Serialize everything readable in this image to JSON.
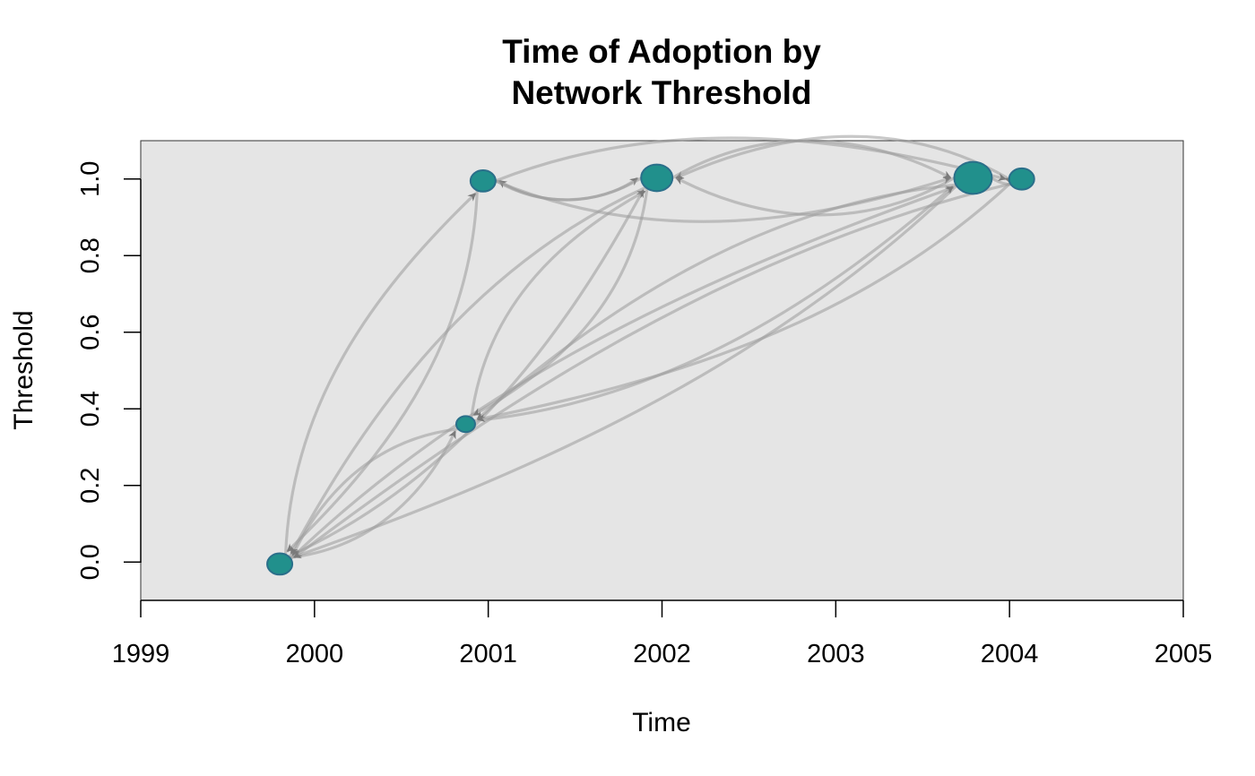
{
  "chart_data": {
    "type": "scatter",
    "title": [
      "Time of Adoption by",
      "Network Threshold"
    ],
    "xlabel": "Time",
    "ylabel": "Threshold",
    "xlim": [
      1999,
      2005
    ],
    "ylim": [
      -0.1,
      1.1
    ],
    "x_ticks": [
      "1999",
      "2000",
      "2001",
      "2002",
      "2003",
      "2004",
      "2005"
    ],
    "y_ticks": [
      "0.0",
      "0.2",
      "0.4",
      "0.6",
      "0.8",
      "1.0"
    ],
    "background": "#e5e5e5",
    "node_color": "#21908c",
    "node_border": "#2a6f8a",
    "edge_color": "#9a9a9a",
    "grid": false,
    "nodes": [
      {
        "id": "n1",
        "x": 1999.8,
        "y": -0.005,
        "size": 2
      },
      {
        "id": "n2",
        "x": 2000.87,
        "y": 0.36,
        "size": 1
      },
      {
        "id": "n3",
        "x": 2000.97,
        "y": 0.995,
        "size": 2
      },
      {
        "id": "n4",
        "x": 2001.97,
        "y": 1.003,
        "size": 3
      },
      {
        "id": "n5",
        "x": 2003.79,
        "y": 1.003,
        "size": 4
      },
      {
        "id": "n6",
        "x": 2004.07,
        "y": 1.0,
        "size": 2
      }
    ],
    "edges": [
      {
        "from": "n1",
        "to": "n2"
      },
      {
        "from": "n1",
        "to": "n3"
      },
      {
        "from": "n1",
        "to": "n4"
      },
      {
        "from": "n1",
        "to": "n5"
      },
      {
        "from": "n2",
        "to": "n1"
      },
      {
        "from": "n3",
        "to": "n1"
      },
      {
        "from": "n4",
        "to": "n1"
      },
      {
        "from": "n5",
        "to": "n1"
      },
      {
        "from": "n6",
        "to": "n1"
      },
      {
        "from": "n2",
        "to": "n4"
      },
      {
        "from": "n2",
        "to": "n5"
      },
      {
        "from": "n4",
        "to": "n2"
      },
      {
        "from": "n5",
        "to": "n2"
      },
      {
        "from": "n6",
        "to": "n2"
      },
      {
        "from": "n3",
        "to": "n4"
      },
      {
        "from": "n4",
        "to": "n3"
      },
      {
        "from": "n3",
        "to": "n5"
      },
      {
        "from": "n5",
        "to": "n4"
      },
      {
        "from": "n6",
        "to": "n4"
      },
      {
        "from": "n4",
        "to": "n5"
      },
      {
        "from": "n5",
        "to": "n6"
      },
      {
        "from": "n3",
        "to": "n6"
      }
    ]
  }
}
